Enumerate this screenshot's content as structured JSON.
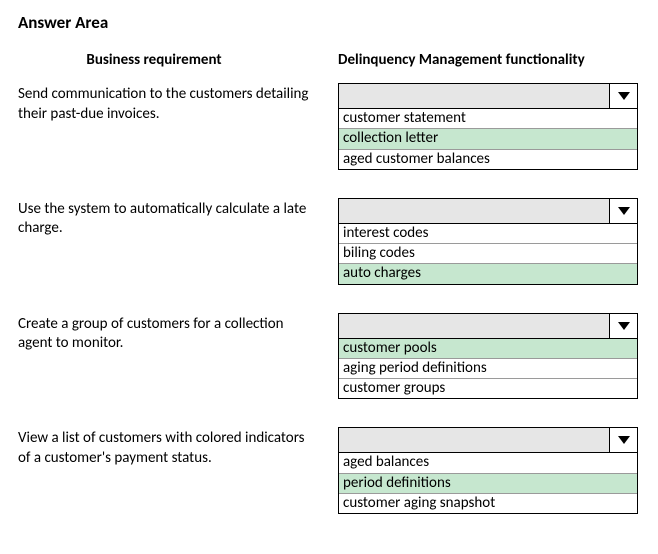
{
  "title": "Answer Area",
  "headers": {
    "left": "Business requirement",
    "right": "Delinquency Management functionality"
  },
  "colors": {
    "dropdown_header_bg": "#e6e6e6",
    "option_selected_bg": "#c6e7cf",
    "option_bg": "#ffffff",
    "border": "#000000",
    "row_divider": "#9a9a9a"
  },
  "rows": [
    {
      "requirement": "Send communication to the customers detailing their past-due invoices.",
      "options": [
        {
          "label": "customer statement",
          "selected": false
        },
        {
          "label": "collection letter",
          "selected": true
        },
        {
          "label": "aged customer balances",
          "selected": false
        }
      ]
    },
    {
      "requirement": "Use the system to automatically calculate a late charge.",
      "options": [
        {
          "label": "interest codes",
          "selected": false
        },
        {
          "label": "biling codes",
          "selected": false
        },
        {
          "label": "auto charges",
          "selected": true
        }
      ]
    },
    {
      "requirement": "Create a group of customers for a collection agent to monitor.",
      "options": [
        {
          "label": "customer pools",
          "selected": true
        },
        {
          "label": "aging period definitions",
          "selected": false
        },
        {
          "label": "customer groups",
          "selected": false
        }
      ]
    },
    {
      "requirement": "View a list of customers with colored indicators of a customer's payment status.",
      "options": [
        {
          "label": "aged balances",
          "selected": false
        },
        {
          "label": "period definitions",
          "selected": true
        },
        {
          "label": "customer aging snapshot",
          "selected": false
        }
      ]
    }
  ]
}
